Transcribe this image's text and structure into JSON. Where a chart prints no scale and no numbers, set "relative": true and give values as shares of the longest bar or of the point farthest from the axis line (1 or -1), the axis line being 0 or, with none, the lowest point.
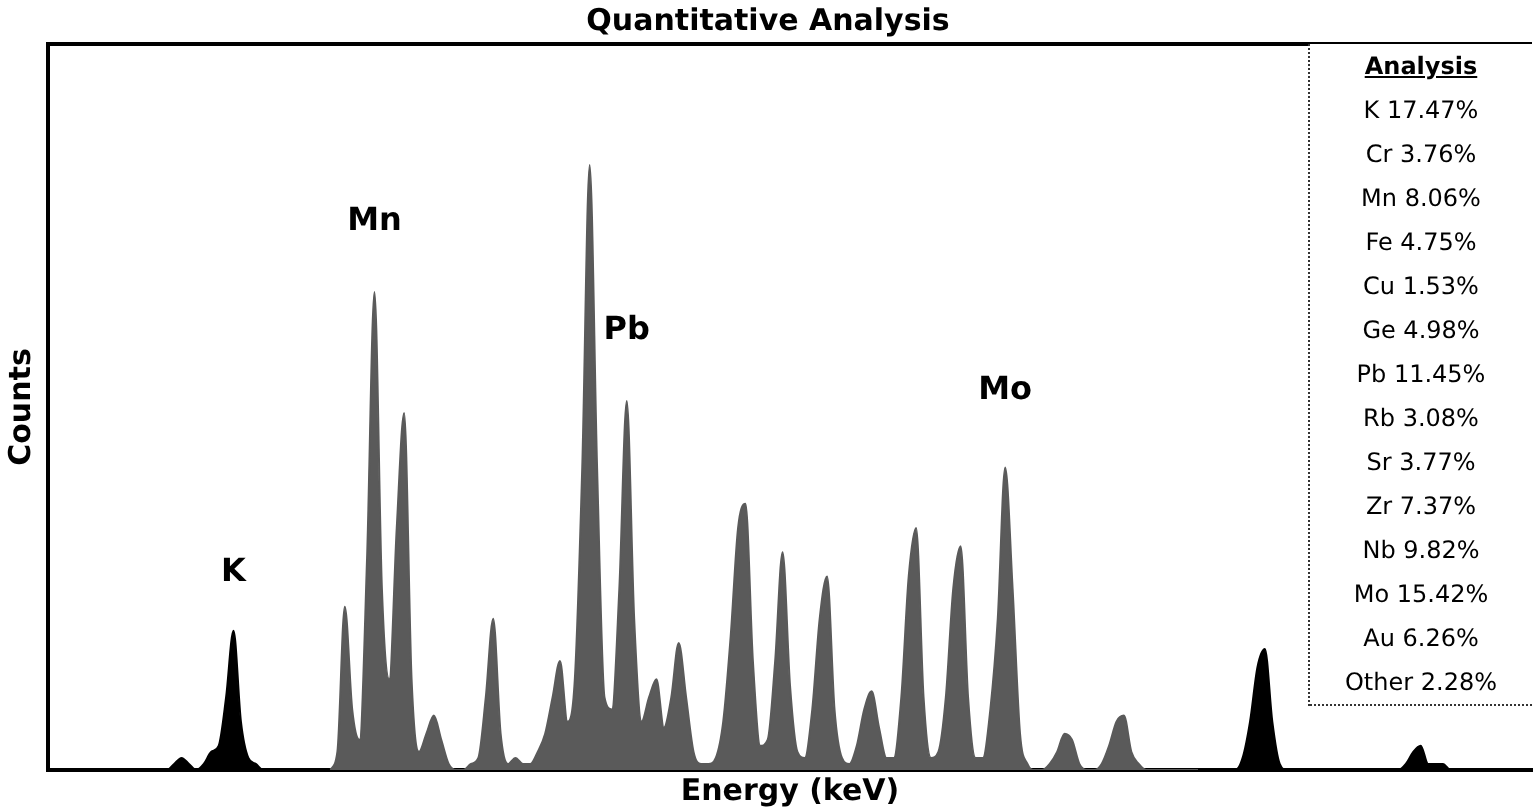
{
  "chart_data": {
    "type": "area",
    "title": "Quantitative Analysis",
    "xlabel": "Energy (keV)",
    "ylabel": "Counts",
    "relative": true,
    "grid": false,
    "legend": false,
    "categories": [
      null,
      null,
      null,
      null,
      null,
      null,
      null,
      null,
      null,
      null,
      null,
      null,
      null,
      null,
      null,
      null,
      null,
      null,
      null,
      null,
      null,
      null,
      null,
      null,
      null,
      null,
      null,
      null,
      null,
      null,
      null,
      null,
      null,
      null,
      null,
      null,
      null,
      null,
      null,
      null,
      null,
      null,
      null,
      null,
      null,
      null,
      null,
      null,
      null,
      null,
      null,
      null,
      null,
      null,
      null,
      null,
      null,
      null,
      null,
      null,
      null,
      null,
      null,
      null,
      null,
      null,
      null,
      null,
      null,
      null,
      null,
      null,
      null,
      null,
      null,
      null,
      null,
      null,
      null,
      null,
      null,
      null,
      null,
      null,
      null,
      null,
      null,
      null,
      null,
      null,
      null,
      null,
      null,
      null,
      null,
      null,
      null,
      null,
      null,
      null,
      null,
      null,
      null,
      null,
      null,
      null,
      null,
      null,
      null,
      null,
      null,
      null,
      null,
      null,
      null,
      null,
      null,
      null,
      null,
      null,
      null,
      null,
      null,
      null,
      null,
      null,
      null,
      null,
      null,
      null,
      null,
      null,
      null,
      null,
      null,
      null,
      null,
      null,
      null,
      null,
      null,
      null,
      null,
      null,
      null,
      null,
      null,
      null,
      null,
      null,
      null,
      null,
      null,
      null,
      null,
      null,
      null,
      null,
      null,
      null,
      null,
      null,
      null,
      null,
      null,
      null,
      null,
      null,
      null,
      null,
      null,
      null,
      null,
      null,
      null,
      null,
      null,
      null,
      null,
      null,
      null,
      null,
      null,
      null,
      null,
      null,
      null,
      null,
      null,
      null,
      null,
      null,
      null,
      null,
      null,
      null,
      null,
      null,
      null,
      null,
      null
    ],
    "series": [
      {
        "color": "#000000",
        "values": [
          0,
          0,
          0,
          0,
          0,
          0,
          0,
          0,
          0,
          0,
          0,
          0,
          0,
          0,
          0,
          0,
          0,
          0.01,
          0.02,
          0.01,
          0,
          0.01,
          0.03,
          0.04,
          0.12,
          0.23,
          0.08,
          0.02,
          0.01,
          0,
          0,
          0,
          0,
          0,
          0,
          0,
          0,
          0,
          0,
          null,
          null,
          null,
          null,
          null,
          null,
          null,
          null,
          null,
          null,
          null,
          null,
          null,
          null,
          null,
          null,
          null,
          null,
          null,
          null,
          null,
          null,
          null,
          null,
          null,
          null,
          null,
          null,
          null,
          null,
          null,
          null,
          null,
          null,
          null,
          null,
          null,
          null,
          null,
          null,
          null,
          null,
          null,
          null,
          null,
          null,
          null,
          null,
          null,
          null,
          null,
          null,
          null,
          null,
          null,
          null,
          null,
          null,
          null,
          null,
          null,
          null,
          null,
          null,
          null,
          null,
          null,
          null,
          null,
          null,
          null,
          null,
          null,
          null,
          null,
          null,
          null,
          null,
          null,
          null,
          null,
          null,
          null,
          null,
          null,
          null,
          null,
          null,
          null,
          null,
          null,
          null,
          null,
          null,
          null,
          null,
          null,
          null,
          null,
          null,
          null,
          null,
          null,
          null,
          null,
          null,
          null,
          null,
          null,
          null,
          null,
          null,
          null,
          null,
          null,
          null,
          0,
          0,
          0,
          0,
          0,
          0,
          0.02,
          0.08,
          0.17,
          0.2,
          0.08,
          0.01,
          0,
          0,
          0,
          0,
          0,
          0,
          0,
          0,
          0,
          0,
          0,
          0,
          0,
          0,
          0,
          0,
          0.01,
          0.03,
          0.04,
          0.01,
          0.01,
          0.01,
          0,
          0,
          0,
          0,
          0,
          0,
          0,
          0,
          0,
          0,
          0,
          0
        ]
      },
      {
        "color": "#5a5a5a",
        "values": [
          null,
          null,
          null,
          null,
          null,
          null,
          null,
          null,
          null,
          null,
          null,
          null,
          null,
          null,
          null,
          null,
          null,
          null,
          null,
          null,
          null,
          null,
          null,
          null,
          null,
          null,
          null,
          null,
          null,
          null,
          null,
          null,
          null,
          null,
          null,
          null,
          null,
          null,
          0,
          0.03,
          0.27,
          0.1,
          0.05,
          0.35,
          0.79,
          0.3,
          0.15,
          0.4,
          0.59,
          0.15,
          0.03,
          0.06,
          0.09,
          0.05,
          0.01,
          0,
          0,
          0.01,
          0.02,
          0.12,
          0.25,
          0.06,
          0.01,
          0.02,
          0.01,
          0.01,
          0.03,
          0.06,
          0.12,
          0.18,
          0.08,
          0.15,
          0.5,
          1,
          0.5,
          0.12,
          0.1,
          0.3,
          0.61,
          0.25,
          0.08,
          0.12,
          0.15,
          0.07,
          0.12,
          0.21,
          0.12,
          0.03,
          0.01,
          0.01,
          0.02,
          0.08,
          0.22,
          0.4,
          0.44,
          0.18,
          0.04,
          0.05,
          0.18,
          0.36,
          0.14,
          0.03,
          0.02,
          0.1,
          0.25,
          0.32,
          0.1,
          0.02,
          0.01,
          0.04,
          0.1,
          0.13,
          0.07,
          0.02,
          0.02,
          0.12,
          0.32,
          0.4,
          0.12,
          0.02,
          0.03,
          0.12,
          0.3,
          0.37,
          0.12,
          0.02,
          0.02,
          0.1,
          0.25,
          0.5,
          0.3,
          0.06,
          0.01,
          0,
          0,
          0.01,
          0.03,
          0.06,
          0.05,
          0.01,
          0,
          0,
          0.01,
          0.04,
          0.08,
          0.09,
          0.03,
          0.01,
          0,
          0,
          0,
          0,
          0,
          0,
          0,
          0,
          null,
          null,
          null,
          null,
          null,
          null,
          null,
          null,
          null,
          null,
          null,
          null,
          null,
          null,
          null,
          null,
          null,
          null,
          null,
          null,
          null,
          null,
          null,
          null,
          null,
          null,
          null,
          null,
          null,
          null,
          null,
          null,
          null,
          null,
          null,
          null,
          null,
          null,
          null,
          null,
          null,
          null,
          null,
          null,
          null
        ]
      }
    ],
    "annotations": [
      "K",
      "Mn",
      "Pb",
      "Mo",
      "Analysis",
      "K 17.47%",
      "Cr 3.76%",
      "Mn 8.06%",
      "Fe 4.75%",
      "Cu 1.53%",
      "Ge 4.98%",
      "Pb 11.45%",
      "Rb 3.08%",
      "Sr 3.77%",
      "Zr 7.37%",
      "Nb 9.82%",
      "Mo 15.42%",
      "Au 6.26%",
      "Other 2.28%"
    ]
  }
}
